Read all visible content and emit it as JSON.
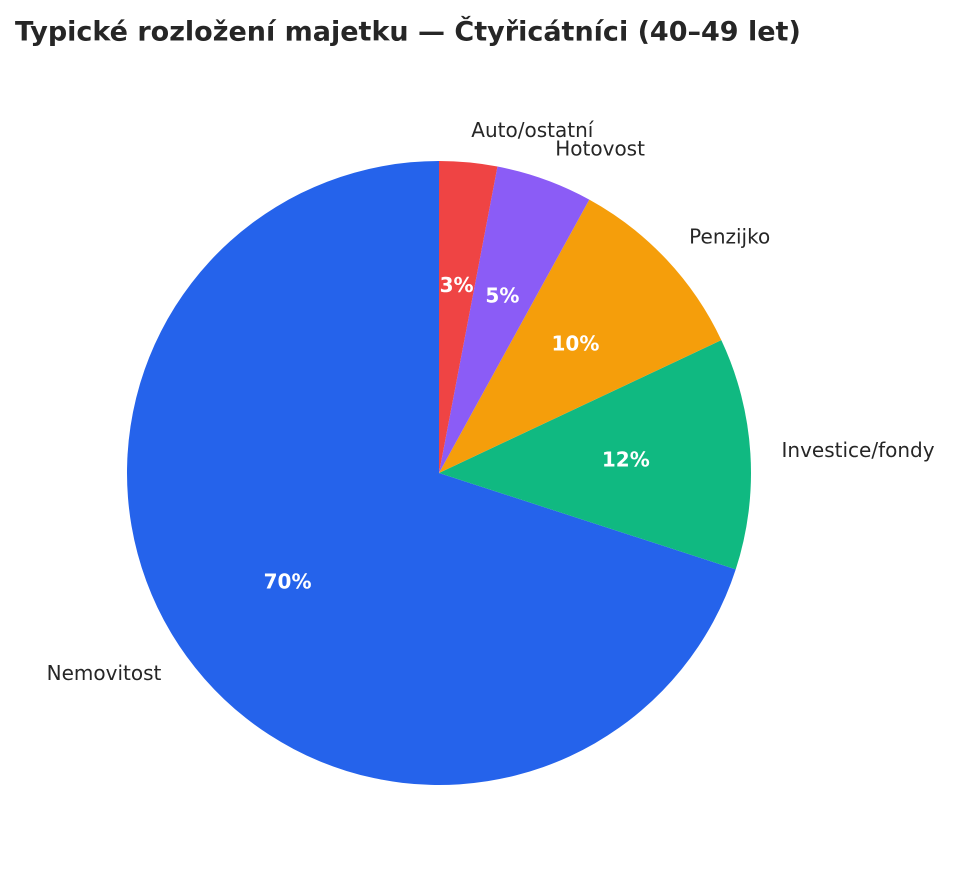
{
  "chart_data": {
    "type": "pie",
    "title": "Typické rozložení majetku — Čtyřicátníci (40–49 let)",
    "categories": [
      "Nemovitost",
      "Investice/fondy",
      "Penzijko",
      "Hotovost",
      "Auto/ostatní"
    ],
    "values": [
      70,
      12,
      10,
      5,
      3
    ],
    "value_labels": [
      "70%",
      "12%",
      "10%",
      "5%",
      "3%"
    ],
    "colors": [
      "#2563eb",
      "#10b981",
      "#f59e0b",
      "#8b5cf6",
      "#ef4444"
    ]
  }
}
